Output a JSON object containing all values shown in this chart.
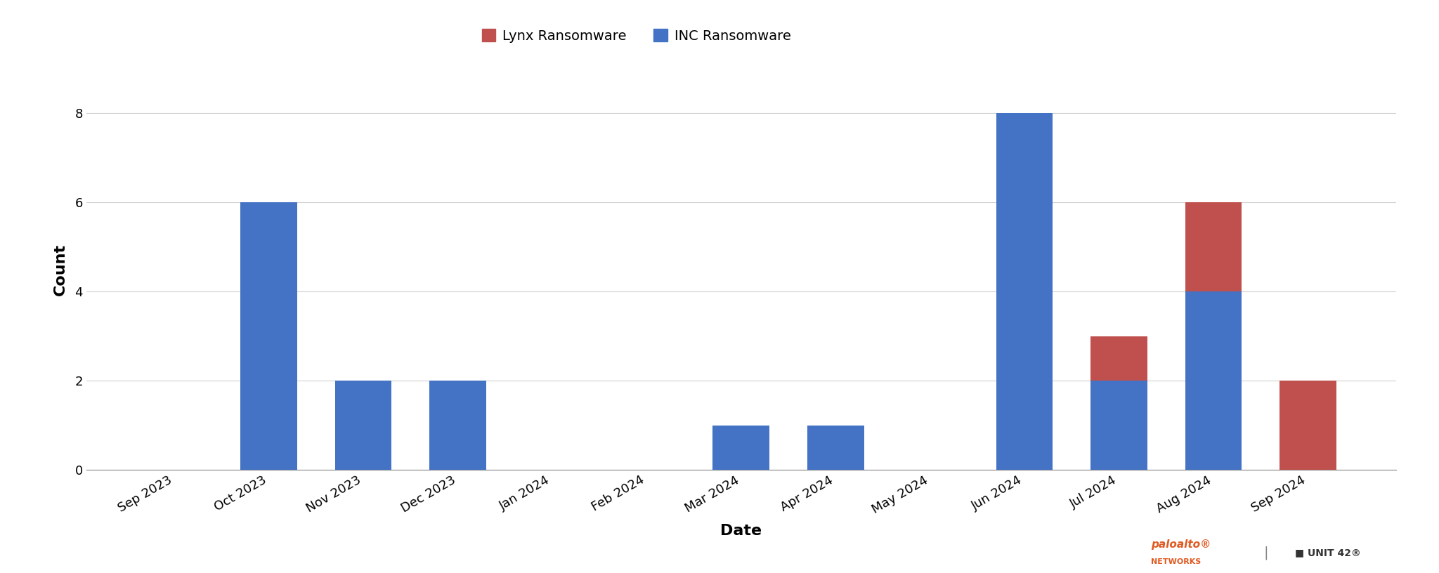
{
  "categories": [
    "Sep 2023",
    "Oct 2023",
    "Nov 2023",
    "Dec 2023",
    "Jan 2024",
    "Feb 2024",
    "Mar 2024",
    "Apr 2024",
    "May 2024",
    "Jun 2024",
    "Jul 2024",
    "Aug 2024",
    "Sep 2024"
  ],
  "inc_values": [
    0,
    6,
    2,
    2,
    0,
    0,
    1,
    1,
    0,
    8,
    2,
    4,
    0
  ],
  "lynx_values": [
    0,
    0,
    0,
    0,
    0,
    0,
    0,
    0,
    0,
    0,
    1,
    2,
    2
  ],
  "inc_color": "#4472C4",
  "lynx_color": "#C0504D",
  "xlabel": "Date",
  "ylabel": "Count",
  "ylim": [
    0,
    9
  ],
  "yticks": [
    0,
    2,
    4,
    6,
    8
  ],
  "legend_lynx": "Lynx Ransomware",
  "legend_inc": "INC Ransomware",
  "background_color": "#ffffff",
  "grid_color": "#d0d0d0",
  "bar_width": 0.6,
  "label_fontsize": 16,
  "tick_fontsize": 13,
  "legend_fontsize": 14
}
